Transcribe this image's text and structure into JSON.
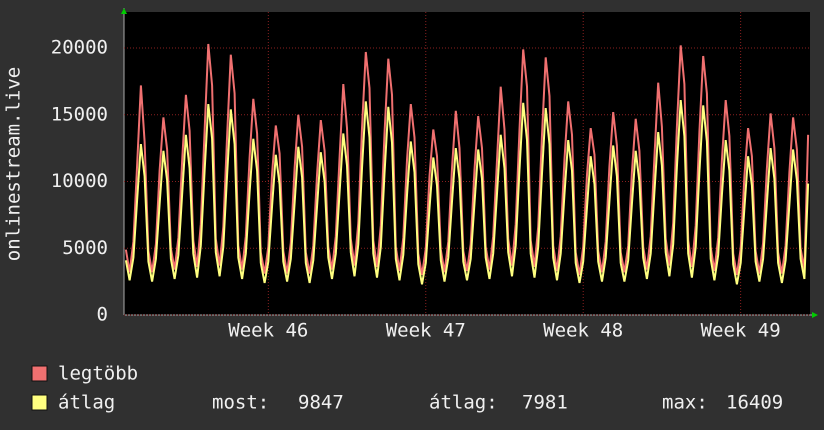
{
  "chart_data": {
    "type": "line",
    "ylabel": "onlinestream.live",
    "x": [
      2,
      6,
      10,
      14,
      18,
      22,
      26,
      30,
      34,
      38,
      42,
      46,
      50,
      54,
      58,
      62,
      66,
      70,
      74,
      78,
      82,
      86,
      90,
      94,
      98,
      102,
      106,
      110,
      114,
      118,
      122,
      126,
      130,
      134,
      138,
      142,
      146,
      150,
      154,
      158,
      162,
      166,
      170,
      174,
      178,
      182,
      186,
      190,
      194,
      198,
      202,
      206,
      210,
      214,
      218,
      222,
      226,
      230,
      234,
      238,
      242,
      246,
      250,
      254,
      258,
      262,
      266,
      270,
      274,
      278,
      282,
      286,
      290,
      294,
      298,
      302,
      306,
      310,
      314,
      318,
      322,
      326,
      330,
      334,
      338,
      342,
      346,
      350,
      354,
      358,
      362,
      366,
      370,
      374,
      378,
      382,
      386,
      390,
      394,
      398,
      402,
      406,
      410,
      414,
      418,
      422,
      426,
      430,
      434,
      438,
      442,
      446,
      450,
      454,
      458,
      462,
      466,
      470,
      474,
      478,
      482,
      486,
      490,
      494,
      498,
      502,
      506,
      510,
      514,
      518,
      522,
      526,
      530,
      534,
      538,
      542,
      546,
      550,
      554,
      558,
      562,
      566,
      570,
      574,
      578,
      582,
      586,
      590,
      594,
      598,
      602,
      606,
      610,
      614,
      618,
      622,
      626,
      630,
      634,
      638,
      642,
      646,
      650,
      654,
      658,
      662,
      666,
      670,
      674,
      678,
      682,
      686,
      690,
      694,
      698,
      702,
      706,
      710,
      714,
      718,
      722,
      726,
      730
    ],
    "xlim": [
      0,
      732
    ],
    "xticks": [
      {
        "value": 154,
        "label": "Week 46"
      },
      {
        "value": 322,
        "label": "Week 47"
      },
      {
        "value": 490,
        "label": "Week 48"
      },
      {
        "value": 658,
        "label": "Week 49"
      }
    ],
    "ylim": [
      0,
      22700
    ],
    "yticks": [
      0,
      5000,
      10000,
      15000,
      20000
    ],
    "grid": true,
    "series": [
      {
        "name": "legtöbb",
        "color": "#f07070",
        "values": [
          4900,
          3200,
          5500,
          11200,
          17200,
          13000,
          4800,
          3200,
          5300,
          10800,
          14800,
          12400,
          5000,
          3400,
          5800,
          11500,
          16500,
          13800,
          5600,
          3600,
          6800,
          13800,
          20300,
          17200,
          5700,
          3700,
          6600,
          13400,
          19500,
          16600,
          5200,
          3400,
          5900,
          11800,
          16200,
          13600,
          4700,
          3100,
          5100,
          10600,
          14200,
          12100,
          4800,
          3100,
          5400,
          11000,
          15000,
          12600,
          4700,
          3100,
          5200,
          10600,
          14600,
          12300,
          5100,
          3400,
          5900,
          11700,
          17300,
          14000,
          5700,
          3700,
          6900,
          14000,
          19700,
          17000,
          5600,
          3600,
          6700,
          13600,
          19200,
          16500,
          5100,
          3300,
          5800,
          11600,
          15800,
          13300,
          4600,
          3000,
          5000,
          10400,
          13900,
          11900,
          4900,
          3200,
          5500,
          11000,
          15300,
          12500,
          4800,
          3300,
          5300,
          10900,
          14900,
          12500,
          5100,
          3400,
          5900,
          11600,
          17100,
          13900,
          5700,
          3700,
          6800,
          13900,
          19900,
          17100,
          5600,
          3600,
          6600,
          13500,
          19300,
          16400,
          5200,
          3300,
          5900,
          11700,
          16000,
          13500,
          4700,
          3000,
          5100,
          10500,
          14000,
          12000,
          4800,
          3200,
          5500,
          11100,
          15200,
          12700,
          4700,
          3200,
          5200,
          10700,
          14700,
          12300,
          5100,
          3400,
          5900,
          11800,
          17400,
          14100,
          5700,
          3700,
          6900,
          14100,
          20200,
          17300,
          5600,
          3600,
          6700,
          13700,
          19400,
          16600,
          5100,
          3300,
          5800,
          11600,
          16100,
          13400,
          4600,
          3000,
          5000,
          10400,
          14000,
          11900,
          4800,
          3100,
          5400,
          11000,
          15100,
          12500,
          4700,
          3100,
          5200,
          10700,
          14800,
          12400,
          5000,
          3400,
          13500
        ]
      },
      {
        "name": "átlag",
        "color": "#ffff80",
        "values": [
          4100,
          2600,
          4300,
          8600,
          12800,
          10400,
          4000,
          2500,
          4200,
          8300,
          12300,
          10100,
          4200,
          2700,
          4500,
          9000,
          13500,
          11000,
          4600,
          2800,
          5200,
          10800,
          15800,
          13200,
          4700,
          2900,
          5100,
          10500,
          15400,
          12800,
          4300,
          2700,
          4600,
          9200,
          13200,
          10800,
          3900,
          2400,
          4000,
          8200,
          12000,
          9800,
          4000,
          2500,
          4200,
          8400,
          12600,
          10300,
          3900,
          2400,
          4100,
          8200,
          12200,
          10000,
          4300,
          2700,
          4600,
          9100,
          13600,
          11200,
          4700,
          2900,
          5300,
          11000,
          16000,
          13300,
          4600,
          2800,
          5100,
          10600,
          15600,
          12900,
          4200,
          2600,
          4500,
          9000,
          13000,
          10700,
          3800,
          2300,
          3900,
          8000,
          11800,
          9700,
          4100,
          2500,
          4300,
          8500,
          12500,
          10200,
          4000,
          2600,
          4200,
          8400,
          12400,
          10200,
          4300,
          2700,
          4600,
          9100,
          13500,
          11000,
          4700,
          2900,
          5200,
          10900,
          15900,
          13100,
          4600,
          2800,
          5100,
          10600,
          15500,
          12800,
          4300,
          2600,
          4600,
          9100,
          13100,
          10800,
          3900,
          2400,
          4000,
          8100,
          11900,
          9800,
          4000,
          2500,
          4300,
          8500,
          12700,
          10400,
          3900,
          2500,
          4100,
          8300,
          12300,
          10000,
          4300,
          2700,
          4600,
          9200,
          13700,
          11200,
          4700,
          2900,
          5300,
          11100,
          16100,
          13400,
          4600,
          2800,
          5100,
          10700,
          15700,
          13000,
          4200,
          2600,
          4500,
          9000,
          13100,
          10800,
          3800,
          2300,
          3900,
          8000,
          11900,
          9700,
          4000,
          2500,
          4200,
          8400,
          12500,
          10200,
          3900,
          2400,
          4100,
          8300,
          12400,
          10100,
          4200,
          2700,
          9847
        ]
      }
    ],
    "stats": [
      {
        "label": "most:",
        "value": 9847
      },
      {
        "label": "átlag:",
        "value": 7981
      },
      {
        "label": "max:",
        "value": 16409
      }
    ]
  }
}
